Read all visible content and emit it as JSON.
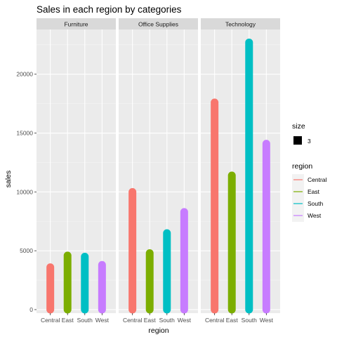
{
  "chart_data": {
    "type": "bar",
    "title": "Sales in each region by categories",
    "xlabel": "region",
    "ylabel": "sales",
    "facets": [
      "Furniture",
      "Office Supplies",
      "Technology"
    ],
    "categories": [
      "Central",
      "East",
      "South",
      "West"
    ],
    "series": [
      {
        "facet": "Furniture",
        "values": [
          3600,
          4600,
          4500,
          3800
        ]
      },
      {
        "facet": "Office Supplies",
        "values": [
          10000,
          4800,
          6500,
          8300
        ]
      },
      {
        "facet": "Technology",
        "values": [
          17600,
          11400,
          22700,
          14100
        ]
      }
    ],
    "ylim": [
      -300,
      23800
    ],
    "yticks": [
      0,
      5000,
      10000,
      15000,
      20000
    ],
    "ytick_labels": [
      "0",
      "5000",
      "10000",
      "15000",
      "20000"
    ],
    "grid": true,
    "legend": {
      "position": "right",
      "size_title": "size",
      "size_value": "3",
      "color_title": "region",
      "entries": [
        "Central",
        "East",
        "South",
        "West"
      ]
    },
    "colors": {
      "Central": "#F8766D",
      "East": "#7CAE00",
      "South": "#00BFC4",
      "West": "#C77CFF",
      "panel_bg": "#EBEBEB",
      "strip_bg": "#D9D9D9",
      "grid_major": "#FFFFFF"
    }
  }
}
